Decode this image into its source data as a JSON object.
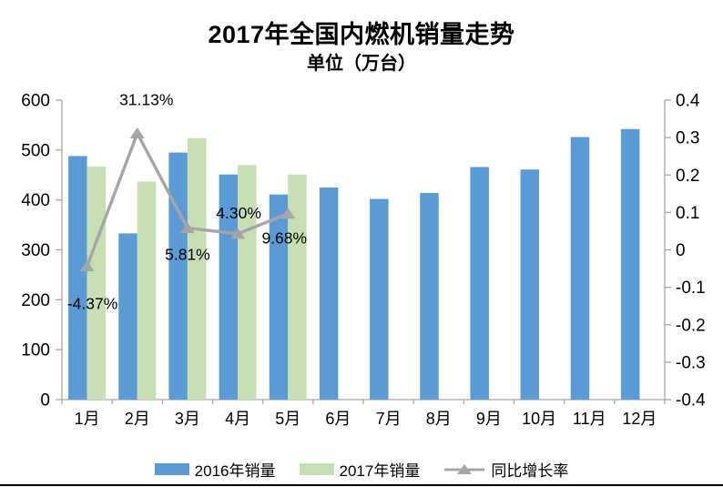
{
  "title": "2017年全国内燃机销量走势",
  "subtitle": "单位（万台）",
  "chart_data": {
    "type": "bar",
    "subtype": "grouped-bar-with-line-overlay",
    "title": "2017年全国内燃机销量走势",
    "unit_label": "单位（万台）",
    "categories": [
      "1月",
      "2月",
      "3月",
      "4月",
      "5月",
      "6月",
      "7月",
      "8月",
      "9月",
      "10月",
      "11月",
      "12月"
    ],
    "series": [
      {
        "name": "2016年销量",
        "type": "bar",
        "axis": "left",
        "color": "#5B9BD5",
        "values": [
          488,
          333,
          495,
          451,
          411,
          425,
          402,
          414,
          466,
          461,
          526,
          542
        ]
      },
      {
        "name": "2017年销量",
        "type": "bar",
        "axis": "left",
        "color": "#C6E0B4",
        "values": [
          467,
          437,
          524,
          470,
          451
        ]
      },
      {
        "name": "同比增长率",
        "type": "line",
        "axis": "right",
        "color": "#A5A5A5",
        "marker": "triangle-up",
        "values": [
          -0.0437,
          0.3113,
          0.0581,
          0.043,
          0.0968
        ],
        "labels": [
          "-4.37%",
          "31.13%",
          "5.81%",
          "4.30%",
          "9.68%"
        ]
      }
    ],
    "left_axis": {
      "min": 0,
      "max": 600,
      "step": 100,
      "ticks": [
        "600",
        "500",
        "400",
        "300",
        "200",
        "100",
        "0"
      ]
    },
    "right_axis": {
      "min": -0.4,
      "max": 0.4,
      "step": 0.1,
      "ticks": [
        "0.4",
        "0.3",
        "0.2",
        "0.1",
        "0",
        "-0.1",
        "-0.2",
        "-0.3",
        "-0.4"
      ]
    },
    "legend_position": "bottom",
    "grid": "off",
    "axis_color": "#A6A6A6",
    "label_color": "#000000"
  }
}
